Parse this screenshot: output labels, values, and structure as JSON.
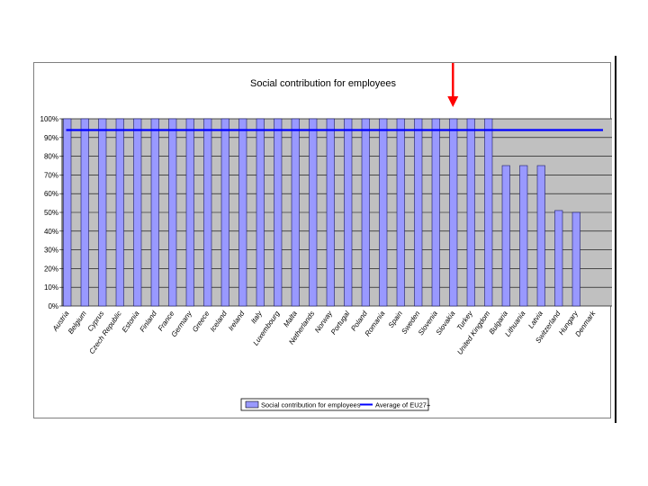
{
  "chart_data": {
    "type": "bar",
    "title": "Social contribution for employees",
    "categories": [
      "Austria",
      "Belgium",
      "Cyprus",
      "Czech Republic",
      "Estonia",
      "Finland",
      "France",
      "Germany",
      "Greece",
      "Iceland",
      "Ireland",
      "Italy",
      "Luxembourg",
      "Malta",
      "Netherlands",
      "Norway",
      "Portugal",
      "Poland",
      "Romania",
      "Spain",
      "Sweden",
      "Slovenia",
      "Slovakia",
      "Turkey",
      "United Kingdom",
      "Bulgaria",
      "Lithuania",
      "Latvia",
      "Switzerland",
      "Hungary",
      "Denmark"
    ],
    "series": [
      {
        "name": "Social contribution for employees",
        "type": "bar",
        "color": "#9999ff",
        "values": [
          100,
          100,
          100,
          100,
          100,
          100,
          100,
          100,
          100,
          100,
          100,
          100,
          100,
          100,
          100,
          100,
          100,
          100,
          100,
          100,
          100,
          100,
          100,
          100,
          100,
          75,
          75,
          75,
          51,
          50,
          0
        ]
      },
      {
        "name": "Average of EU27+",
        "type": "line",
        "color": "#0000ff",
        "value": 94
      }
    ],
    "yticks": [
      "0%",
      "10%",
      "20%",
      "30%",
      "40%",
      "50%",
      "60%",
      "70%",
      "80%",
      "90%",
      "100%"
    ],
    "ylim": [
      0,
      100
    ],
    "grid": true,
    "legend_position": "bottom",
    "plot_background": "#c0c0c0",
    "annotation": {
      "type": "arrow",
      "color": "#ff0000",
      "points_to": "Slovakia"
    }
  }
}
